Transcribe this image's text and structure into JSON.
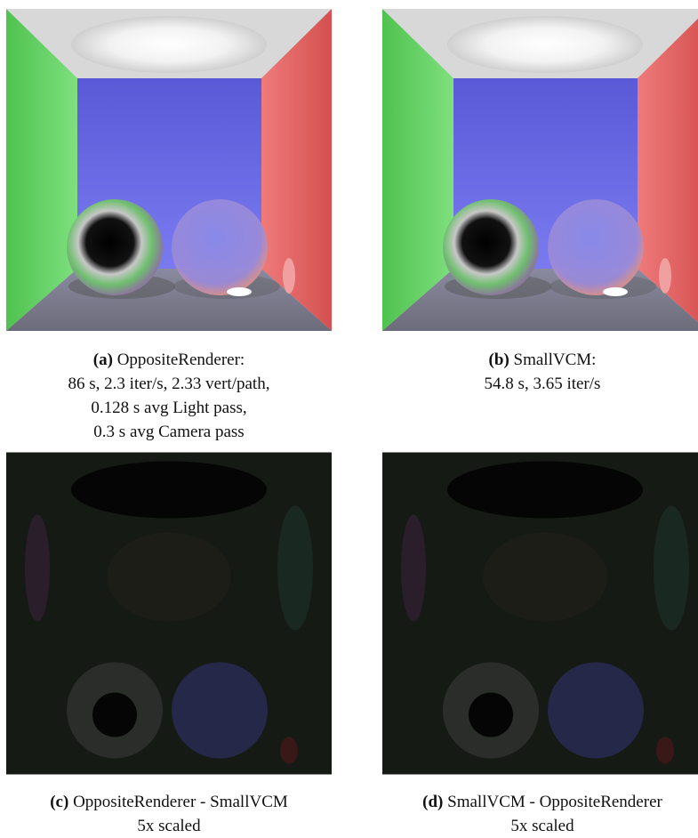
{
  "figures": [
    {
      "label": "(a)",
      "lines": [
        "OppositeRenderer:",
        "86 s, 2.3 iter/s, 2.33 vert/path,",
        "0.128 s avg Light pass,",
        "0.3 s avg Camera pass"
      ]
    },
    {
      "label": "(b)",
      "lines": [
        "SmallVCM:",
        "54.8 s, 3.65 iter/s"
      ]
    },
    {
      "label": "(c)",
      "lines": [
        "OppositeRenderer - SmallVCM",
        "5x scaled"
      ]
    },
    {
      "label": "(d)",
      "lines": [
        "SmallVCM - OppositeRenderer",
        "5x scaled"
      ]
    }
  ]
}
